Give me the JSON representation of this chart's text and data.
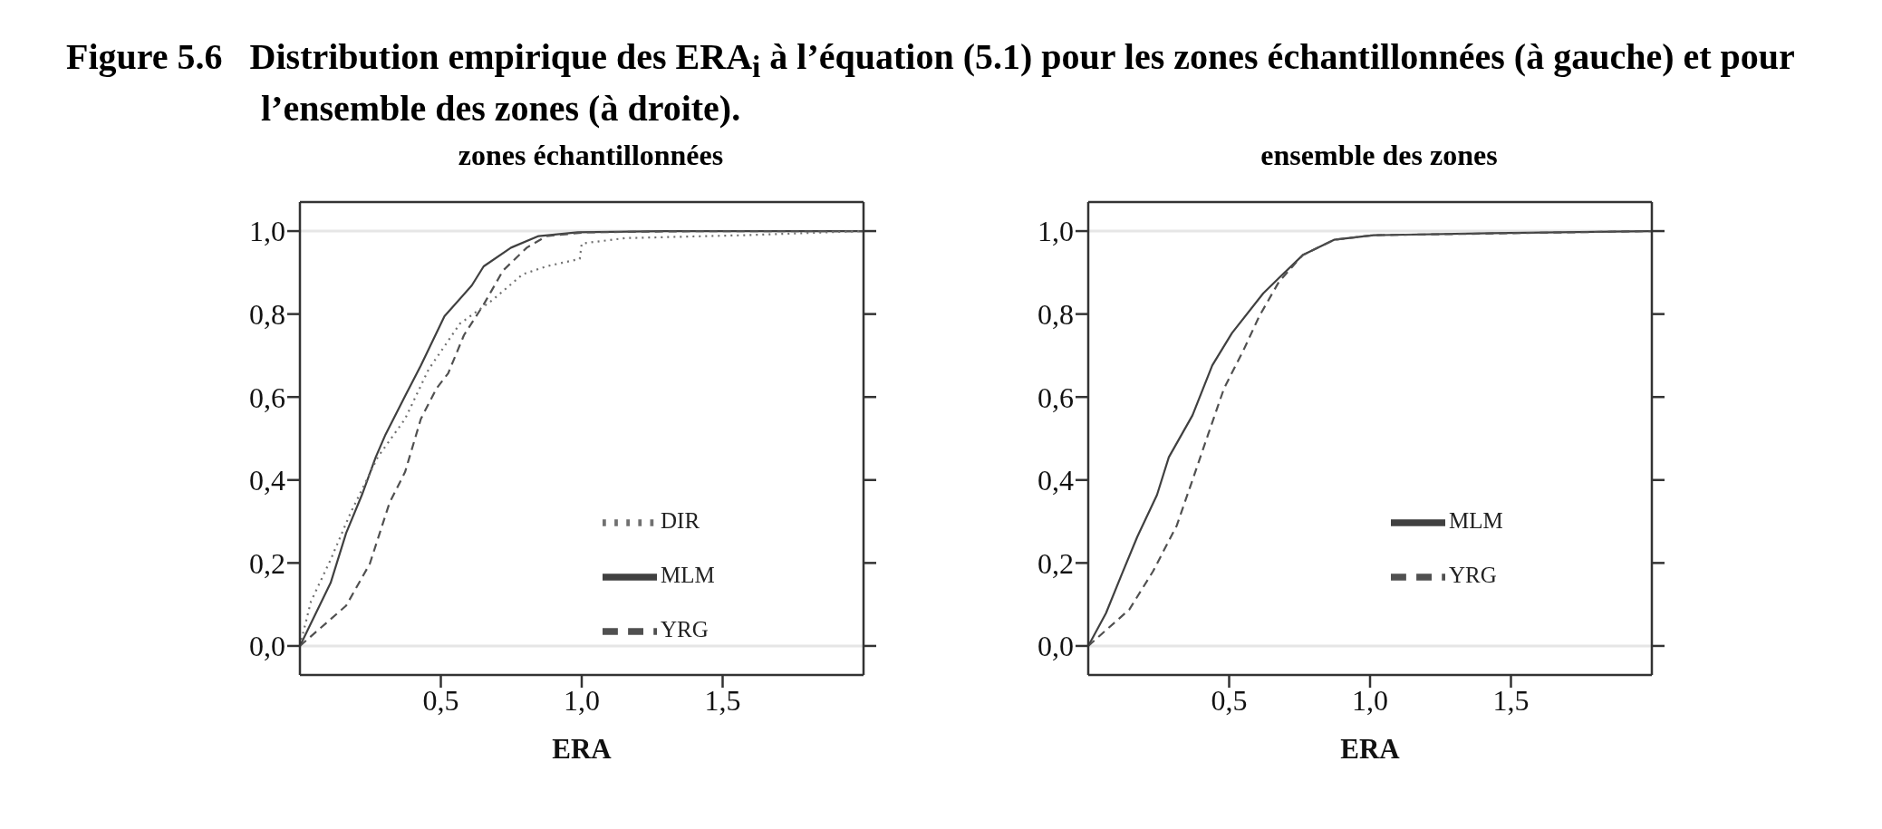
{
  "chart_data": [
    {
      "type": "line",
      "title": "zones échantillonnées",
      "xlabel": "ERA",
      "annotations": [
        "Figure 5.6   Distribution empirique des ERA$_{i}$ à l’équation (5.1) pour les zones échantillonnées (à gauche) et pour l’ensemble des zones (à droite)."
      ],
      "xlim": [
        0,
        2
      ],
      "xticks": [
        {
          "value": 0.5,
          "label": "0,5"
        },
        {
          "value": 1.0,
          "label": "1,0"
        },
        {
          "value": 1.5,
          "label": "1,5"
        }
      ],
      "ylim": [
        -0.07,
        1.07
      ],
      "yticks": [
        {
          "value": 0,
          "label": "0,0"
        },
        {
          "value": 0.2,
          "label": "0,2"
        },
        {
          "value": 0.4,
          "label": "0,4"
        },
        {
          "value": 0.6,
          "label": "0,6"
        },
        {
          "value": 0.8,
          "label": "0,8"
        },
        {
          "value": 1.0,
          "label": "1,0"
        }
      ],
      "ref_lines": [
        {
          "axis": "y",
          "value": 0,
          "color": "#e6e6e6"
        },
        {
          "axis": "y",
          "value": 1,
          "color": "#e6e6e6"
        }
      ],
      "legend": "right",
      "series": [
        {
          "name": "MLM",
          "color": "#404040",
          "line_style": "solid",
          "x": [
            0,
            0.109,
            0.164,
            0.22,
            0.269,
            0.304,
            0.373,
            0.429,
            0.513,
            0.61,
            0.652,
            0.749,
            0.847,
            0.986,
            1.29,
            2.0
          ],
          "values": [
            0,
            0.152,
            0.272,
            0.364,
            0.455,
            0.51,
            0.602,
            0.676,
            0.795,
            0.869,
            0.915,
            0.96,
            0.988,
            0.997,
            1.0,
            1.0
          ]
        },
        {
          "name": "YRG",
          "color": "#505050",
          "line_style": "dashed",
          "x": [
            0,
            0.164,
            0.248,
            0.318,
            0.373,
            0.429,
            0.485,
            0.526,
            0.582,
            0.652,
            0.721,
            0.805,
            0.875,
            1.014,
            1.43,
            2.0
          ],
          "values": [
            0,
            0.097,
            0.198,
            0.345,
            0.419,
            0.547,
            0.621,
            0.657,
            0.749,
            0.823,
            0.905,
            0.96,
            0.988,
            0.997,
            1.0,
            1.0
          ]
        },
        {
          "name": "DIR",
          "color": "#707070",
          "line_style": "dotted",
          "x": [
            0,
            0.039,
            0.109,
            0.178,
            0.276,
            0.373,
            0.457,
            0.568,
            0.68,
            0.791,
            0.875,
            0.993,
            1.0,
            1.153,
            1.571,
            2.0
          ],
          "values": [
            0,
            0.107,
            0.208,
            0.318,
            0.455,
            0.547,
            0.667,
            0.777,
            0.832,
            0.896,
            0.915,
            0.933,
            0.97,
            0.983,
            0.99,
            1.0
          ]
        }
      ]
    },
    {
      "type": "line",
      "title": "ensemble des zones",
      "xlabel": "ERA",
      "xlim": [
        0,
        2
      ],
      "xticks": [
        {
          "value": 0.5,
          "label": "0,5"
        },
        {
          "value": 1.0,
          "label": "1,0"
        },
        {
          "value": 1.5,
          "label": "1,5"
        }
      ],
      "ylim": [
        -0.07,
        1.07
      ],
      "yticks": [
        {
          "value": 0,
          "label": "0,0"
        },
        {
          "value": 0.2,
          "label": "0,2"
        },
        {
          "value": 0.4,
          "label": "0,4"
        },
        {
          "value": 0.6,
          "label": "0,6"
        },
        {
          "value": 0.8,
          "label": "0,8"
        },
        {
          "value": 1.0,
          "label": "1,0"
        }
      ],
      "ref_lines": [
        {
          "axis": "y",
          "value": 0,
          "color": "#e6e6e6"
        },
        {
          "axis": "y",
          "value": 1,
          "color": "#e6e6e6"
        }
      ],
      "legend": "right",
      "series": [
        {
          "name": "MLM",
          "color": "#404040",
          "line_style": "solid",
          "x": [
            0,
            0.063,
            0.118,
            0.174,
            0.244,
            0.286,
            0.37,
            0.44,
            0.51,
            0.621,
            0.677,
            0.761,
            0.872,
            1.012,
            1.43,
            2.0
          ],
          "values": [
            0,
            0.079,
            0.171,
            0.263,
            0.364,
            0.455,
            0.556,
            0.676,
            0.754,
            0.85,
            0.887,
            0.942,
            0.979,
            0.99,
            0.995,
            1.0
          ]
        },
        {
          "name": "YRG",
          "color": "#505050",
          "line_style": "dashed",
          "x": [
            0,
            0.146,
            0.23,
            0.314,
            0.37,
            0.426,
            0.482,
            0.551,
            0.607,
            0.677,
            0.761,
            0.872,
            1.012,
            1.71,
            2.0
          ],
          "values": [
            0,
            0.088,
            0.18,
            0.29,
            0.4,
            0.511,
            0.621,
            0.713,
            0.795,
            0.878,
            0.942,
            0.979,
            0.99,
            0.997,
            1.0
          ]
        }
      ]
    }
  ]
}
